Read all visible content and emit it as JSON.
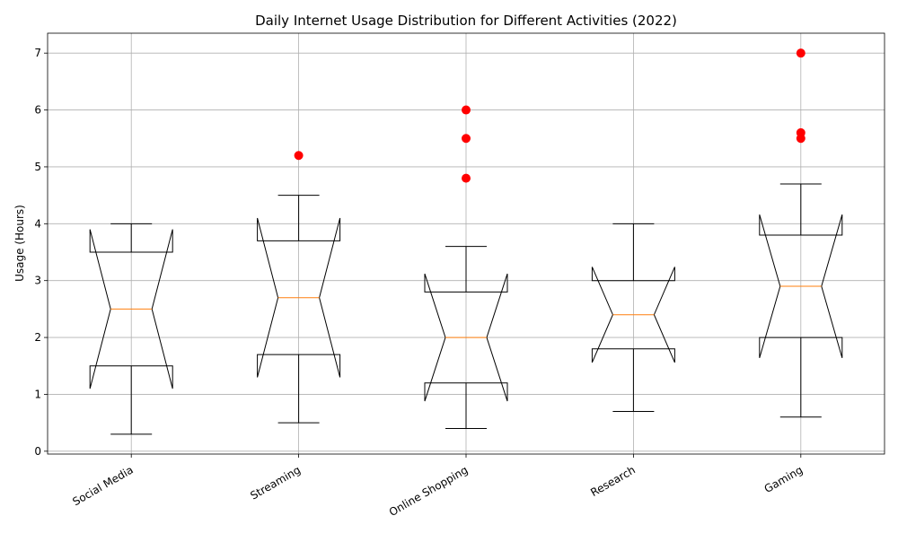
{
  "chart_data": {
    "type": "boxplot",
    "title": "Daily Internet Usage Distribution for Different Activities (2022)",
    "xlabel": "",
    "ylabel": "Usage (Hours)",
    "ylim": [
      -0.05,
      7.35
    ],
    "yticks": [
      0,
      1,
      2,
      3,
      4,
      5,
      6,
      7
    ],
    "grid": true,
    "notched": true,
    "categories": [
      "Social Media",
      "Streaming",
      "Online Shopping",
      "Research",
      "Gaming"
    ],
    "boxes": [
      {
        "label": "Social Media",
        "whisker_low": 0.3,
        "q1": 1.5,
        "median": 2.5,
        "q3": 3.5,
        "whisker_high": 4.0,
        "notch_low": 1.1,
        "notch_high": 3.9,
        "outliers": []
      },
      {
        "label": "Streaming",
        "whisker_low": 0.5,
        "q1": 1.7,
        "median": 2.7,
        "q3": 3.7,
        "whisker_high": 4.5,
        "notch_low": 1.3,
        "notch_high": 4.1,
        "outliers": [
          5.2
        ]
      },
      {
        "label": "Online Shopping",
        "whisker_low": 0.4,
        "q1": 1.2,
        "median": 2.0,
        "q3": 2.8,
        "whisker_high": 3.6,
        "notch_low": 0.88,
        "notch_high": 3.12,
        "outliers": [
          4.8,
          5.5,
          6.0
        ]
      },
      {
        "label": "Research",
        "whisker_low": 0.7,
        "q1": 1.8,
        "median": 2.4,
        "q3": 3.0,
        "whisker_high": 4.0,
        "notch_low": 1.56,
        "notch_high": 3.24,
        "outliers": []
      },
      {
        "label": "Gaming",
        "whisker_low": 0.6,
        "q1": 2.0,
        "median": 2.9,
        "q3": 3.8,
        "whisker_high": 4.7,
        "notch_low": 1.64,
        "notch_high": 4.16,
        "outliers": [
          5.5,
          5.6,
          7.0
        ]
      }
    ],
    "colors": {
      "box": "#000000",
      "median": "#ff7f0e",
      "outlier": "#ff0000",
      "grid": "#b0b0b0"
    }
  }
}
